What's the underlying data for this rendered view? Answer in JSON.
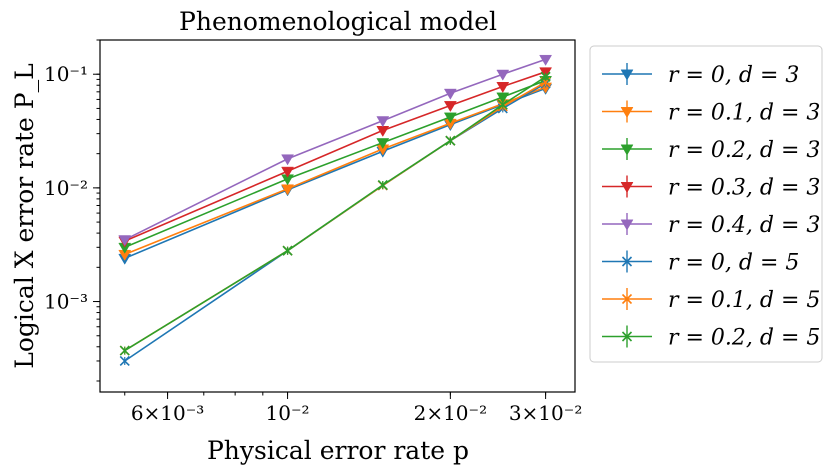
{
  "chart_data": {
    "type": "line",
    "title": "Phenomenological model",
    "xlabel": "Physical error rate p",
    "ylabel": "Logical X error rate P_L",
    "xscale": "log",
    "yscale": "log",
    "xlim": [
      0.0045,
      0.034
    ],
    "ylim": [
      0.00016,
      0.2
    ],
    "x": [
      0.005,
      0.01,
      0.015,
      0.02,
      0.025,
      0.03
    ],
    "x_tick_values": [
      0.006,
      0.01,
      0.02,
      0.03
    ],
    "x_tick_labels": [
      "6×10⁻³",
      "10⁻²",
      "2×10⁻²",
      "3×10⁻²"
    ],
    "y_tick_values": [
      0.001,
      0.01,
      0.1
    ],
    "y_tick_labels": [
      "10⁻³",
      "10⁻²",
      "10⁻¹"
    ],
    "legend_position": "right-outside",
    "series": [
      {
        "name": "r = 0, d = 3",
        "color": "#1f77b4",
        "marker": "triangle-down",
        "values": [
          0.0024,
          0.0096,
          0.021,
          0.036,
          0.054,
          0.075
        ]
      },
      {
        "name": "r = 0.1, d = 3",
        "color": "#ff7f0e",
        "marker": "triangle-down",
        "values": [
          0.0026,
          0.0098,
          0.022,
          0.037,
          0.055,
          0.077
        ]
      },
      {
        "name": "r = 0.2, d = 3",
        "color": "#2ca02c",
        "marker": "triangle-down",
        "values": [
          0.003,
          0.012,
          0.025,
          0.042,
          0.063,
          0.088
        ]
      },
      {
        "name": "r = 0.3, d = 3",
        "color": "#d62728",
        "marker": "triangle-down",
        "values": [
          0.0034,
          0.014,
          0.032,
          0.053,
          0.078,
          0.105
        ]
      },
      {
        "name": "r = 0.4, d = 3",
        "color": "#9467bd",
        "marker": "triangle-down",
        "values": [
          0.0035,
          0.018,
          0.039,
          0.068,
          0.1,
          0.135
        ]
      },
      {
        "name": "r = 0, d = 5",
        "color": "#1f77b4",
        "marker": "x",
        "values": [
          0.0003,
          0.0028,
          0.0105,
          0.026,
          0.05,
          0.083
        ]
      },
      {
        "name": "r = 0.1, d = 5",
        "color": "#ff7f0e",
        "marker": "x",
        "values": [
          0.00037,
          0.0028,
          0.0105,
          0.026,
          0.052,
          0.085
        ]
      },
      {
        "name": "r = 0.2, d = 5",
        "color": "#2ca02c",
        "marker": "x",
        "values": [
          0.00037,
          0.0028,
          0.0106,
          0.026,
          0.054,
          0.095
        ]
      }
    ]
  }
}
